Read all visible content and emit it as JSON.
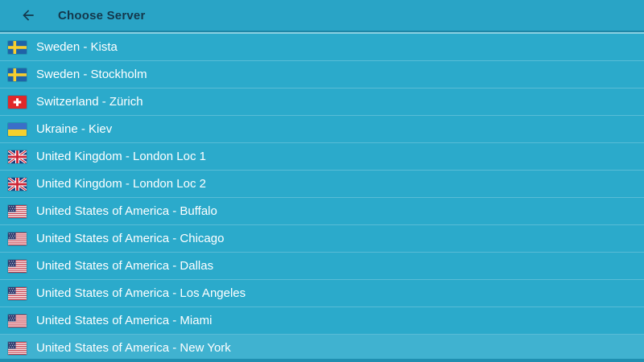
{
  "header": {
    "title": "Choose Server",
    "back_icon": "arrow-left-icon"
  },
  "colors": {
    "header_bg": "#29a4c6",
    "list_bg": "#2baacb",
    "row_text": "#ffffff",
    "title_text": "#14384c",
    "divider": "rgba(255,255,255,0.22)",
    "highlight_overlay": "rgba(255,255,255,0.10)",
    "bottom_strip": "#1f8fb0"
  },
  "servers": [
    {
      "label": "Sweden - Kista",
      "flag": "se",
      "highlighted": false
    },
    {
      "label": "Sweden - Stockholm",
      "flag": "se",
      "highlighted": false
    },
    {
      "label": "Switzerland - Zürich",
      "flag": "ch",
      "highlighted": false
    },
    {
      "label": "Ukraine - Kiev",
      "flag": "ua",
      "highlighted": false
    },
    {
      "label": "United Kingdom - London Loc 1",
      "flag": "gb",
      "highlighted": false
    },
    {
      "label": "United Kingdom - London Loc 2",
      "flag": "gb",
      "highlighted": false
    },
    {
      "label": "United States of America - Buffalo",
      "flag": "us",
      "highlighted": false
    },
    {
      "label": "United States of America - Chicago",
      "flag": "us",
      "highlighted": false
    },
    {
      "label": "United States of America - Dallas",
      "flag": "us",
      "highlighted": false
    },
    {
      "label": "United States of America - Los Angeles",
      "flag": "us",
      "highlighted": false
    },
    {
      "label": "United States of America - Miami",
      "flag": "us",
      "highlighted": false
    },
    {
      "label": "United States of America - New York",
      "flag": "us",
      "highlighted": true
    }
  ]
}
